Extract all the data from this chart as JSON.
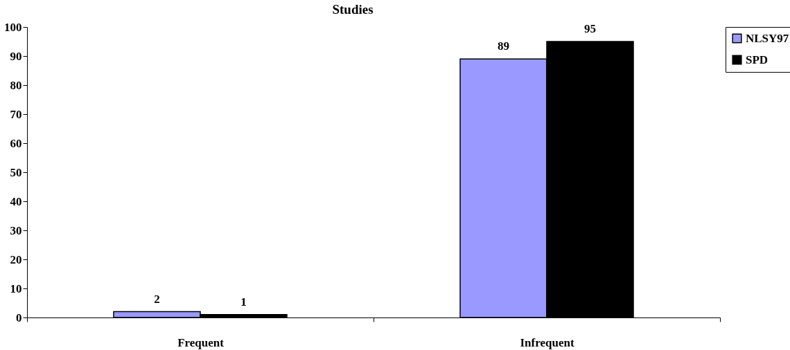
{
  "chart_data": {
    "type": "bar",
    "title": "Studies",
    "categories": [
      "Frequent",
      "Infrequent"
    ],
    "series": [
      {
        "name": "NLSY97",
        "color": "#9999ff",
        "values": [
          2,
          89
        ]
      },
      {
        "name": "SPD",
        "color": "#000000",
        "values": [
          1,
          95
        ]
      }
    ],
    "ylim": [
      0,
      100
    ],
    "yticks": [
      0,
      10,
      20,
      30,
      40,
      50,
      60,
      70,
      80,
      90,
      100
    ],
    "grid": false,
    "legend": "right",
    "data_labels": true
  }
}
